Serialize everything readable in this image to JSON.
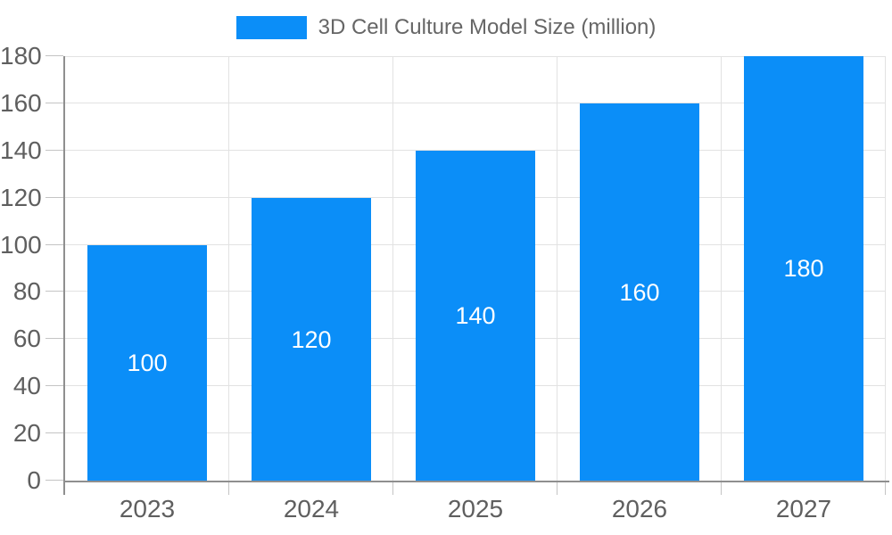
{
  "chart_data": {
    "type": "bar",
    "title": "3D Cell Culture Model Size (million)",
    "legend": [
      "3D Cell Culture Model Size (million)"
    ],
    "legend_position": "top",
    "categories": [
      "2023",
      "2024",
      "2025",
      "2026",
      "2027"
    ],
    "values": [
      100,
      120,
      140,
      160,
      180
    ],
    "bar_labels": [
      "100",
      "120",
      "140",
      "160",
      "180"
    ],
    "series": [
      {
        "name": "3D Cell Culture Model Size (million)",
        "values": [
          100,
          120,
          140,
          160,
          180
        ]
      }
    ],
    "xlabel": "",
    "ylabel": "",
    "ylim": [
      0,
      180
    ],
    "yticks": [
      0,
      20,
      40,
      60,
      80,
      100,
      120,
      140,
      160,
      180
    ],
    "grid": true,
    "colors": {
      "bar": "#0b8ef8",
      "bar_label": "#ffffff",
      "axis": "#8f8f8f",
      "gridline": "#e2e2e2",
      "tick": "#c4c4c4",
      "tick_label": "#5f5f5f",
      "legend_text": "#666666",
      "background": "#ffffff"
    }
  }
}
